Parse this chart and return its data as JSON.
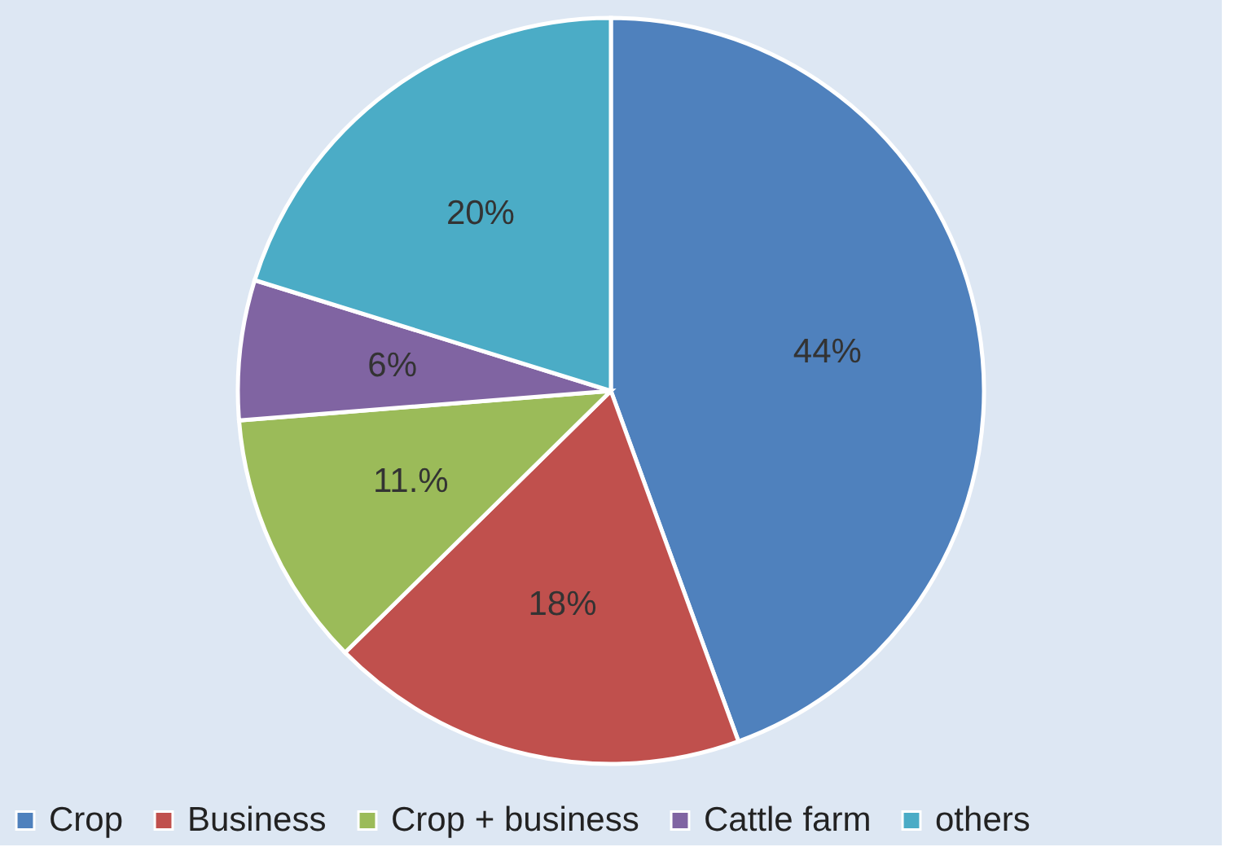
{
  "chart_data": {
    "type": "pie",
    "categories": [
      "Crop",
      "Business",
      "Crop + business",
      "Cattle farm",
      "others"
    ],
    "values": [
      44,
      18,
      11,
      6,
      20
    ],
    "colors": [
      "#4f81bd",
      "#c0504d",
      "#9bbb59",
      "#8064a2",
      "#4bacc6"
    ],
    "value_labels": [
      "44%",
      "18%",
      "11.%",
      "6%",
      "20%"
    ],
    "legend": "bottom"
  }
}
